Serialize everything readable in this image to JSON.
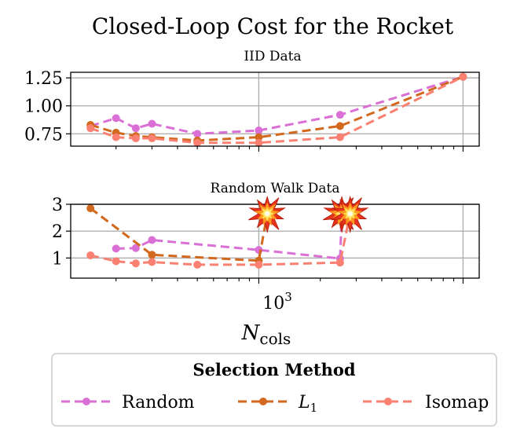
{
  "chart_data": {
    "title": "Closed-Loop Cost for the Rocket",
    "xlabel": "N",
    "xlabel_sub": "cols",
    "x_scale": "log",
    "xlim": [
      120,
      12000
    ],
    "x_tick_major_label": "10",
    "x_tick_major_exp": "3",
    "subplots": [
      {
        "type": "line",
        "title": "IID Data",
        "ylim": [
          0.64,
          1.3
        ],
        "yticks": [
          0.75,
          1.0,
          1.25
        ],
        "ytick_labels": [
          "0.75",
          "1.00",
          "1.25"
        ],
        "grid": true,
        "series": [
          {
            "name": "Random",
            "x": [
              150,
              200,
              250,
              300,
              500,
              1000,
              2500,
              10000
            ],
            "y": [
              0.82,
              0.89,
              0.8,
              0.84,
              0.75,
              0.78,
              0.92,
              1.26
            ]
          },
          {
            "name": "L1",
            "x": [
              150,
              200,
              250,
              300,
              500,
              1000,
              2500,
              10000
            ],
            "y": [
              0.83,
              0.76,
              0.73,
              0.72,
              0.69,
              0.72,
              0.82,
              1.26
            ]
          },
          {
            "name": "Isomap",
            "x": [
              150,
              200,
              250,
              300,
              500,
              1000,
              2500,
              10000
            ],
            "y": [
              0.8,
              0.72,
              0.71,
              0.71,
              0.67,
              0.67,
              0.72,
              1.26
            ]
          }
        ]
      },
      {
        "type": "line",
        "title": "Random Walk Data",
        "ylim": [
          0.25,
          3.0
        ],
        "yticks": [
          1,
          2,
          3
        ],
        "ytick_labels": [
          "1",
          "2",
          "3"
        ],
        "grid": true,
        "series": [
          {
            "name": "Random",
            "x": [
              200,
              250,
              300,
              1000,
              2500,
              2550
            ],
            "y": [
              1.35,
              1.37,
              1.67,
              1.3,
              0.98,
              2.65
            ],
            "diverged_after": 2550
          },
          {
            "name": "L1",
            "x": [
              150,
              300,
              1000,
              1100
            ],
            "y": [
              2.85,
              1.12,
              0.9,
              2.65
            ],
            "diverged_after": 1100
          },
          {
            "name": "Isomap",
            "x": [
              150,
              200,
              250,
              300,
              500,
              1000,
              2500,
              2800
            ],
            "y": [
              1.1,
              0.88,
              0.8,
              0.85,
              0.75,
              0.75,
              0.83,
              2.65
            ],
            "diverged_after": 2800
          }
        ],
        "annotations": [
          "explosion-marker",
          "explosion-marker",
          "explosion-marker"
        ]
      }
    ],
    "legend": {
      "title": "Selection Method",
      "placement": "bottom",
      "entries": [
        {
          "label": "Random",
          "color": "#DA70D6"
        },
        {
          "label": "L",
          "sub": "1",
          "color": "#D2691E"
        },
        {
          "label": "Isomap",
          "color": "#FA8072"
        }
      ]
    }
  },
  "colors": {
    "random": "#DA70D6",
    "l1": "#D2691E",
    "isomap": "#FA8072",
    "grid": "#b0b0b0"
  }
}
